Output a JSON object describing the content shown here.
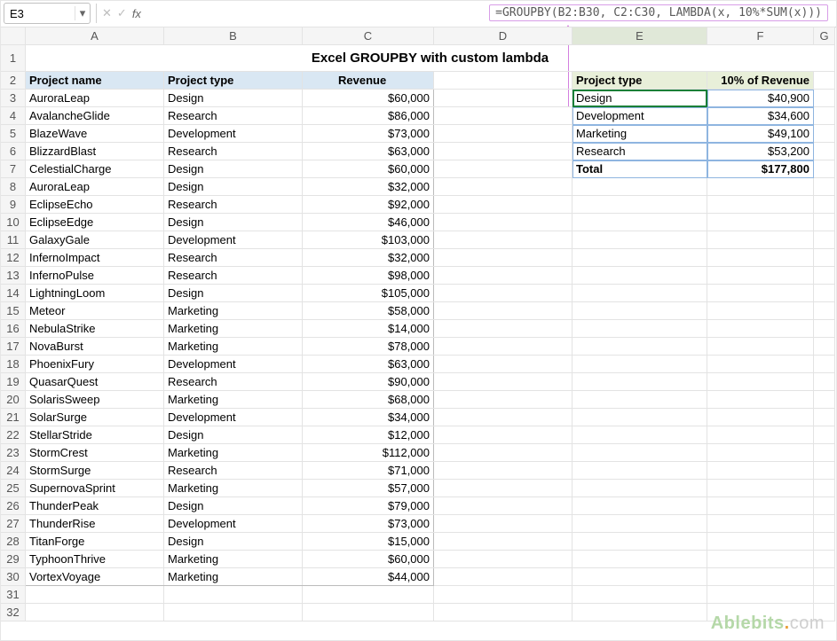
{
  "namebox": {
    "value": "E3"
  },
  "formula": "=GROUPBY(B2:B30, C2:C30, LAMBDA(x, 10%*SUM(x)))",
  "columns": [
    "A",
    "B",
    "C",
    "D",
    "E",
    "F",
    "G"
  ],
  "title": "Excel GROUPBY with custom lambda",
  "left_headers": {
    "A": "Project name",
    "B": "Project type",
    "C": "Revenue"
  },
  "right_headers": {
    "E": "Project type",
    "F": "10% of Revenue"
  },
  "active_col": "E",
  "active_row": 3,
  "rows": [
    {
      "n": 3,
      "a": "AuroraLeap",
      "b": "Design",
      "c": "$60,000"
    },
    {
      "n": 4,
      "a": "AvalancheGlide",
      "b": "Research",
      "c": "$86,000"
    },
    {
      "n": 5,
      "a": "BlazeWave",
      "b": "Development",
      "c": "$73,000"
    },
    {
      "n": 6,
      "a": "BlizzardBlast",
      "b": "Research",
      "c": "$63,000"
    },
    {
      "n": 7,
      "a": "CelestialCharge",
      "b": "Design",
      "c": "$60,000"
    },
    {
      "n": 8,
      "a": "AuroraLeap",
      "b": "Design",
      "c": "$32,000"
    },
    {
      "n": 9,
      "a": "EclipseEcho",
      "b": "Research",
      "c": "$92,000"
    },
    {
      "n": 10,
      "a": "EclipseEdge",
      "b": "Design",
      "c": "$46,000"
    },
    {
      "n": 11,
      "a": "GalaxyGale",
      "b": "Development",
      "c": "$103,000"
    },
    {
      "n": 12,
      "a": "InfernoImpact",
      "b": "Research",
      "c": "$32,000"
    },
    {
      "n": 13,
      "a": "InfernoPulse",
      "b": "Research",
      "c": "$98,000"
    },
    {
      "n": 14,
      "a": "LightningLoom",
      "b": "Design",
      "c": "$105,000"
    },
    {
      "n": 15,
      "a": "Meteor",
      "b": "Marketing",
      "c": "$58,000"
    },
    {
      "n": 16,
      "a": "NebulaStrike",
      "b": "Marketing",
      "c": "$14,000"
    },
    {
      "n": 17,
      "a": "NovaBurst",
      "b": "Marketing",
      "c": "$78,000"
    },
    {
      "n": 18,
      "a": "PhoenixFury",
      "b": "Development",
      "c": "$63,000"
    },
    {
      "n": 19,
      "a": "QuasarQuest",
      "b": "Research",
      "c": "$90,000"
    },
    {
      "n": 20,
      "a": "SolarisSweep",
      "b": "Marketing",
      "c": "$68,000"
    },
    {
      "n": 21,
      "a": "SolarSurge",
      "b": "Development",
      "c": "$34,000"
    },
    {
      "n": 22,
      "a": "StellarStride",
      "b": "Design",
      "c": "$12,000"
    },
    {
      "n": 23,
      "a": "StormCrest",
      "b": "Marketing",
      "c": "$112,000"
    },
    {
      "n": 24,
      "a": "StormSurge",
      "b": "Research",
      "c": "$71,000"
    },
    {
      "n": 25,
      "a": "SupernovaSprint",
      "b": "Marketing",
      "c": "$57,000"
    },
    {
      "n": 26,
      "a": "ThunderPeak",
      "b": "Design",
      "c": "$79,000"
    },
    {
      "n": 27,
      "a": "ThunderRise",
      "b": "Development",
      "c": "$73,000"
    },
    {
      "n": 28,
      "a": "TitanForge",
      "b": "Design",
      "c": "$15,000"
    },
    {
      "n": 29,
      "a": "TyphoonThrive",
      "b": "Marketing",
      "c": "$60,000"
    },
    {
      "n": 30,
      "a": "VortexVoyage",
      "b": "Marketing",
      "c": "$44,000"
    }
  ],
  "right_rows": [
    {
      "n": 3,
      "e": "Design",
      "f": "$40,900"
    },
    {
      "n": 4,
      "e": "Development",
      "f": "$34,600"
    },
    {
      "n": 5,
      "e": "Marketing",
      "f": "$49,100"
    },
    {
      "n": 6,
      "e": "Research",
      "f": "$53,200"
    }
  ],
  "right_total": {
    "n": 7,
    "e": "Total",
    "f": "$177,800"
  },
  "blank_rows": [
    31,
    32
  ],
  "watermark": {
    "brand": "Ablebits",
    "dot": ".",
    "tld": "com"
  },
  "colors": {
    "grid": "#e3e3e3",
    "hdr": "#f5f5f5",
    "lhdr": "#d9e7f3",
    "rhdr": "#e8efd9",
    "sel": "#1a7f37",
    "spill": "#8fb5e0",
    "formula_box": "#d89ee8",
    "arrow": "#d37fe0"
  }
}
